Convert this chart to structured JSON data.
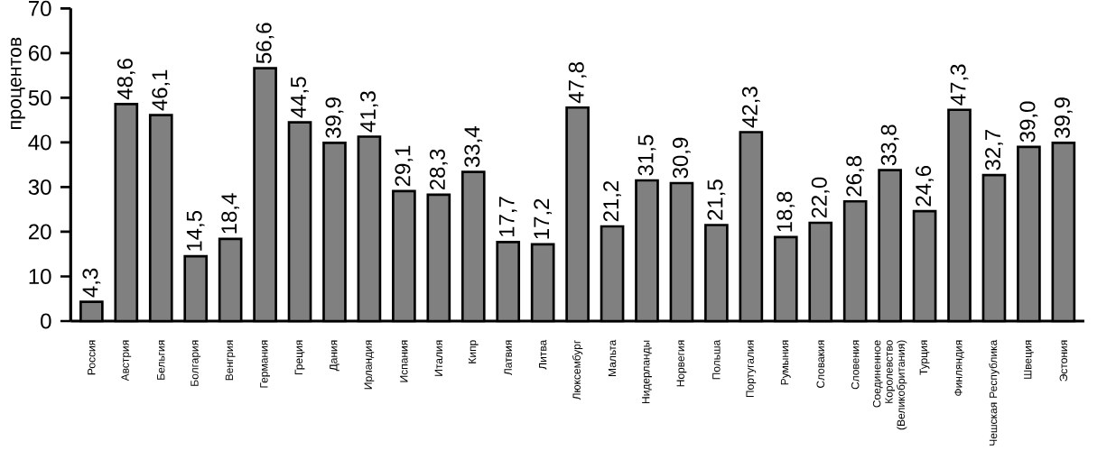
{
  "chart_data": {
    "type": "bar",
    "ylabel": "процентов",
    "categories": [
      "Россия",
      "Австрия",
      "Бельгия",
      "Болгария",
      "Венгрия",
      "Германия",
      "Греция",
      "Дания",
      "Ирландия",
      "Испания",
      "Италия",
      "Кипр",
      "Латвия",
      "Литва",
      "Люксембург",
      "Мальта",
      "Нидерланды",
      "Норвегия",
      "Польша",
      "Португалия",
      "Румыния",
      "Словакия",
      "Словения",
      "Соединенное Королевство (Великобритания)",
      "Турция",
      "Финляндия",
      "Чешская Республика",
      "Швеция",
      "Эстония"
    ],
    "values": [
      4.3,
      48.6,
      46.1,
      14.5,
      18.4,
      56.6,
      44.5,
      39.9,
      41.3,
      29.1,
      28.3,
      33.4,
      17.7,
      17.2,
      47.8,
      21.2,
      31.5,
      30.9,
      21.5,
      42.3,
      18.8,
      22.0,
      26.8,
      33.8,
      24.6,
      47.3,
      32.7,
      39.0,
      39.9
    ],
    "value_labels": [
      "4,3",
      "48,6",
      "46,1",
      "14,5",
      "18,4",
      "56,6",
      "44,5",
      "39,9",
      "41,3",
      "29,1",
      "28,3",
      "33,4",
      "17,7",
      "17,2",
      "47,8",
      "21,2",
      "31,5",
      "30,9",
      "21,5",
      "42,3",
      "18,8",
      "22,0",
      "26,8",
      "33,8",
      "24,6",
      "47,3",
      "32,7",
      "39,0",
      "39,9"
    ],
    "color": "#808080",
    "ylim": [
      0,
      70
    ],
    "yticks": [
      0,
      10,
      20,
      30,
      40,
      50,
      60,
      70
    ]
  }
}
